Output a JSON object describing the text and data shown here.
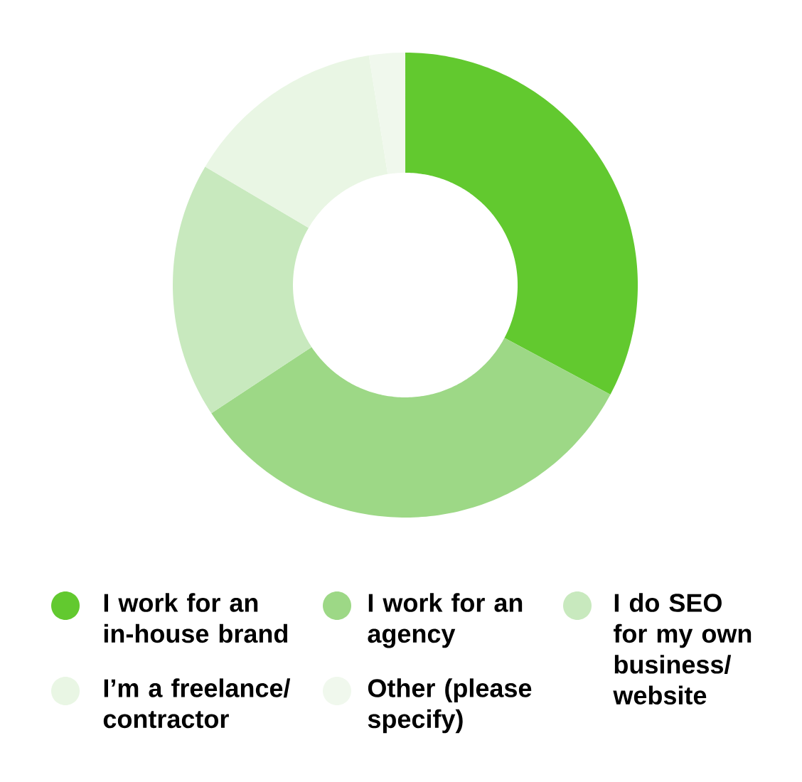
{
  "chart_data": {
    "type": "donut",
    "categories": [
      "I work for an in-house brand",
      "I work for an agency",
      "I do SEO for my own business/ website",
      "I’m a freelance/ contractor",
      "Other (please specify)"
    ],
    "values": [
      32.8,
      32.9,
      17.8,
      14.0,
      2.5
    ],
    "colors": [
      "#62c92f",
      "#9dd886",
      "#c8e9be",
      "#e9f6e4",
      "#f0f8ed"
    ],
    "legend": "bottom"
  }
}
